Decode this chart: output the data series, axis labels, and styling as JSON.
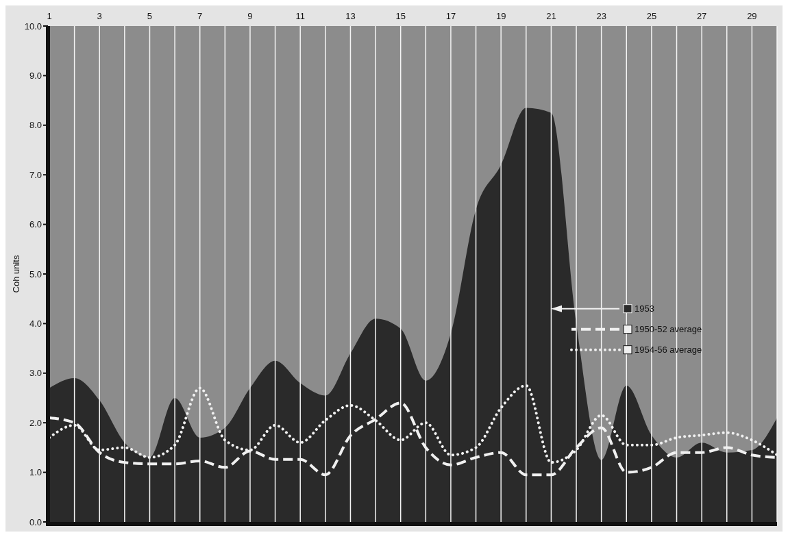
{
  "chart_data": {
    "type": "area",
    "ylabel": "Coh units",
    "x": [
      1,
      2,
      3,
      4,
      5,
      6,
      7,
      8,
      9,
      10,
      11,
      12,
      13,
      14,
      15,
      16,
      17,
      18,
      19,
      20,
      21,
      22,
      23,
      24,
      25,
      26,
      27,
      28,
      29,
      30
    ],
    "xlim": [
      1,
      30
    ],
    "xticks": [
      1,
      {
        "value": 2,
        "label": null
      },
      3,
      {
        "value": 4,
        "label": null
      },
      5,
      {
        "value": 6,
        "label": null
      },
      7,
      {
        "value": 8,
        "label": null
      },
      9,
      {
        "value": 10,
        "label": null
      },
      11,
      {
        "value": 12,
        "label": null
      },
      13,
      {
        "value": 14,
        "label": null
      },
      15,
      {
        "value": 16,
        "label": null
      },
      17,
      {
        "value": 18,
        "label": null
      },
      19,
      {
        "value": 20,
        "label": null
      },
      21,
      {
        "value": 22,
        "label": null
      },
      23,
      {
        "value": 24,
        "label": null
      },
      25,
      {
        "value": 26,
        "label": null
      },
      27,
      {
        "value": 28,
        "label": null
      },
      29,
      {
        "value": 30,
        "label": null
      }
    ],
    "ylim": [
      0,
      10
    ],
    "yticks": [
      {
        "value": 0,
        "label": "0.0"
      },
      {
        "value": 1,
        "label": "1.0"
      },
      {
        "value": 2,
        "label": "2.0"
      },
      {
        "value": 3,
        "label": "3.0"
      },
      {
        "value": 4,
        "label": "4.0"
      },
      {
        "value": 5,
        "label": "5.0"
      },
      {
        "value": 6,
        "label": "6.0"
      },
      {
        "value": 7,
        "label": "7.0"
      },
      {
        "value": 8,
        "label": "8.0"
      },
      {
        "value": 9,
        "label": "9.0"
      },
      {
        "value": 10,
        "label": "10.0"
      }
    ],
    "grid": "x",
    "legend": "right",
    "series": [
      {
        "name": "1953",
        "type": "area",
        "color": "#2a2a2a",
        "values": [
          2.7,
          2.9,
          2.45,
          1.6,
          1.3,
          2.5,
          1.7,
          1.9,
          2.7,
          3.25,
          2.8,
          2.55,
          3.4,
          4.1,
          3.9,
          2.85,
          3.8,
          6.3,
          7.2,
          8.35,
          8.25,
          4.0,
          1.25,
          2.75,
          1.75,
          1.3,
          1.6,
          1.4,
          1.45,
          2.1
        ]
      },
      {
        "name": "1950-52 average",
        "type": "line",
        "line_style": "dashed",
        "color": "#f0f0f0",
        "values": [
          2.1,
          2.0,
          1.4,
          1.2,
          1.17,
          1.17,
          1.23,
          1.1,
          1.43,
          1.26,
          1.26,
          0.95,
          1.74,
          2.07,
          2.4,
          1.5,
          1.15,
          1.3,
          1.4,
          0.95,
          0.95,
          1.5,
          1.9,
          1.0,
          1.1,
          1.4,
          1.4,
          1.5,
          1.35,
          1.3
        ]
      },
      {
        "name": "1954-56 average",
        "type": "line",
        "line_style": "dotted",
        "color": "#f0f0f0",
        "values": [
          1.7,
          1.95,
          1.45,
          1.5,
          1.3,
          1.55,
          2.7,
          1.65,
          1.45,
          1.95,
          1.6,
          2.05,
          2.35,
          2.05,
          1.65,
          2.0,
          1.35,
          1.5,
          2.3,
          2.75,
          1.2,
          1.45,
          2.15,
          1.55,
          1.55,
          1.7,
          1.75,
          1.8,
          1.65,
          1.35
        ]
      }
    ]
  }
}
